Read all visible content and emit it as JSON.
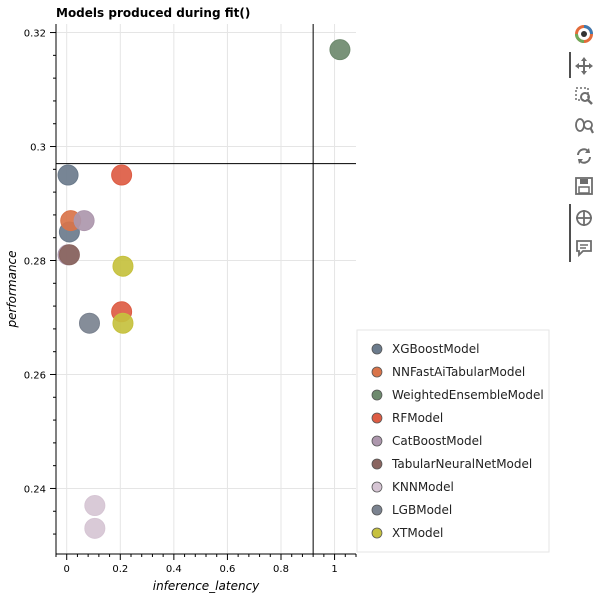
{
  "chart_data": {
    "type": "scatter",
    "title": "Models produced during fit()",
    "xlabel": "inference_latency",
    "ylabel": "performance",
    "xlim": [
      -0.04,
      1.08
    ],
    "ylim": [
      0.2285,
      0.3215
    ],
    "x_ticks": [
      0,
      0.2,
      0.4,
      0.6,
      0.8,
      1
    ],
    "x_tick_labels": [
      "0",
      "0.2",
      "0.4",
      "0.6",
      "0.8",
      "1"
    ],
    "y_ticks": [
      0.24,
      0.26,
      0.28,
      0.3,
      0.32
    ],
    "y_tick_labels": [
      "0.24",
      "0.26",
      "0.28",
      "0.3",
      "0.32"
    ],
    "grid": true,
    "legend_position": "bottom-right outside",
    "crosshair": {
      "x": 0.92,
      "y": 0.297
    },
    "series": [
      {
        "name": "XGBoostModel",
        "color": "#6b7b8c",
        "points": [
          [
            0.005,
            0.295
          ],
          [
            0.01,
            0.285
          ]
        ]
      },
      {
        "name": "NNFastAiTabularModel",
        "color": "#d9744a",
        "points": [
          [
            0.015,
            0.287
          ]
        ]
      },
      {
        "name": "WeightedEnsembleModel",
        "color": "#6e8a6e",
        "points": [
          [
            1.02,
            0.317
          ]
        ]
      },
      {
        "name": "RFModel",
        "color": "#dd5c44",
        "points": [
          [
            0.205,
            0.295
          ],
          [
            0.205,
            0.271
          ]
        ]
      },
      {
        "name": "CatBoostModel",
        "color": "#ad97ad",
        "points": [
          [
            0.065,
            0.287
          ],
          [
            0.005,
            0.281
          ]
        ]
      },
      {
        "name": "TabularNeuralNetModel",
        "color": "#8a6560",
        "points": [
          [
            0.01,
            0.281
          ]
        ]
      },
      {
        "name": "KNNModel",
        "color": "#d6c5d4",
        "points": [
          [
            0.105,
            0.237
          ],
          [
            0.105,
            0.233
          ]
        ]
      },
      {
        "name": "LGBModel",
        "color": "#7b8390",
        "points": [
          [
            0.085,
            0.269
          ]
        ]
      },
      {
        "name": "XTModel",
        "color": "#c6c13e",
        "points": [
          [
            0.21,
            0.279
          ],
          [
            0.21,
            0.269
          ]
        ]
      }
    ]
  },
  "toolbar": {
    "logo": "bokeh-logo-icon",
    "tools": [
      "pan-icon",
      "box-zoom-icon",
      "wheel-zoom-icon",
      "reset-icon",
      "save-icon",
      "crosshair-icon",
      "hover-icon"
    ]
  }
}
